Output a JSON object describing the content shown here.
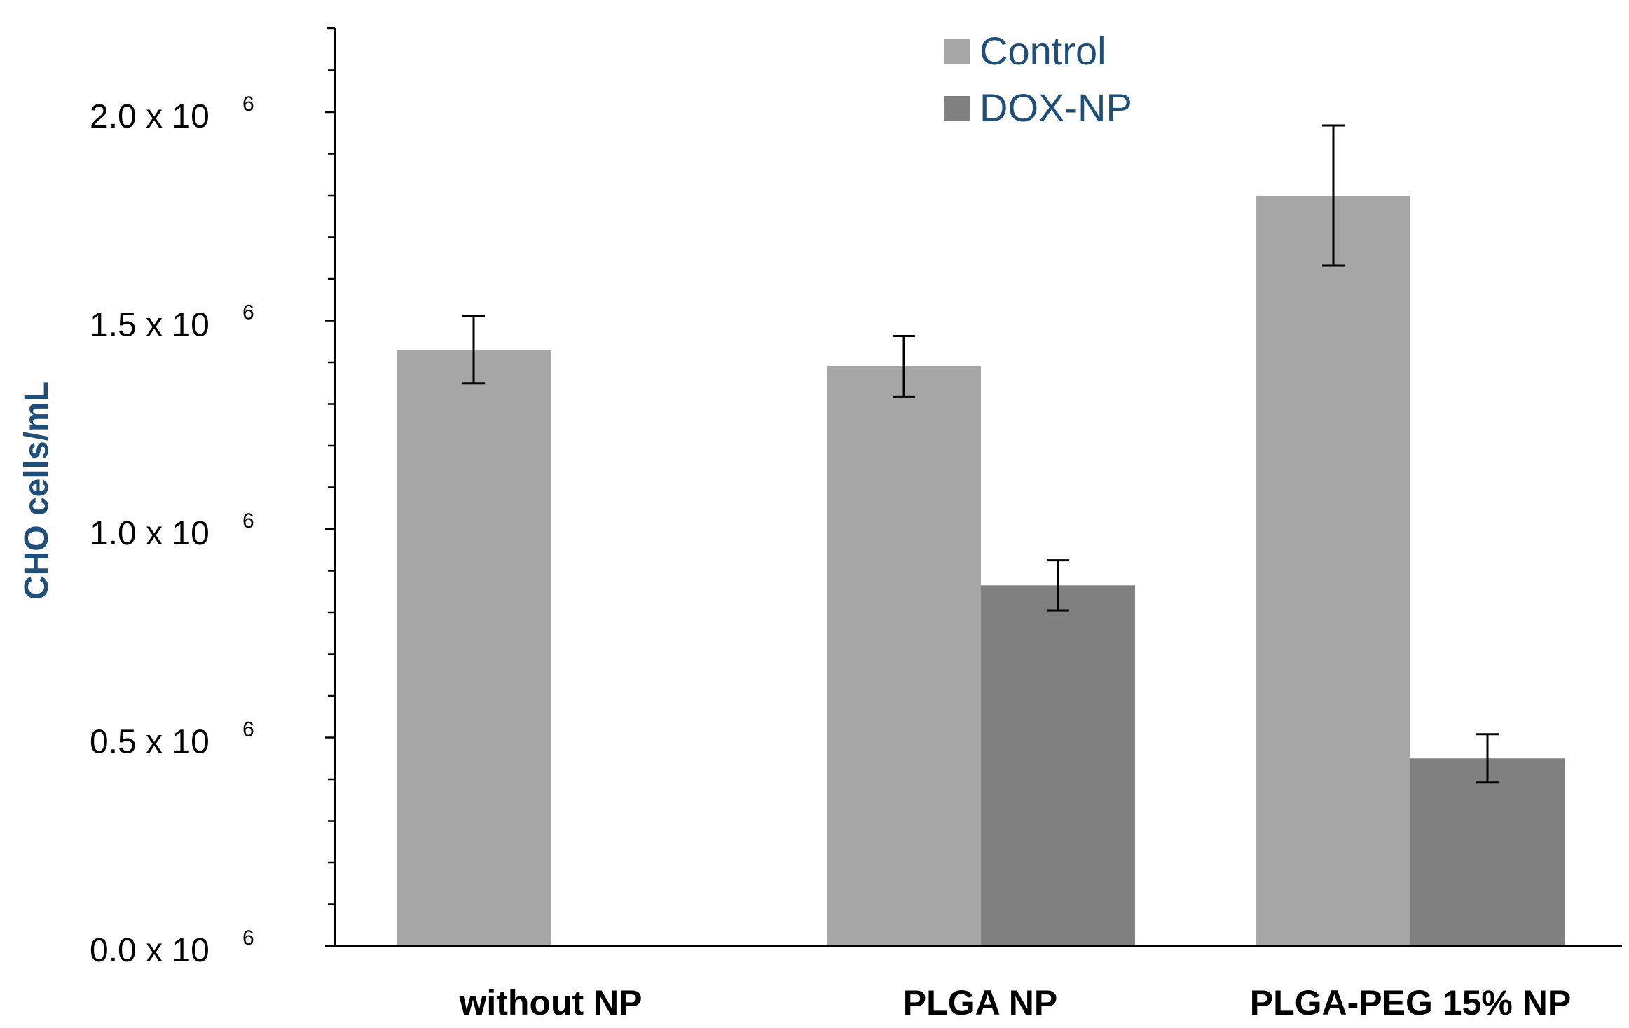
{
  "chart_data": {
    "type": "bar",
    "title": "",
    "xlabel": "",
    "ylabel": "CHO cells/mL",
    "ylim": [
      0,
      2200000
    ],
    "categories": [
      "without NP",
      "PLGA NP",
      "PLGA-PEG 15% NP"
    ],
    "y_ticks": [
      {
        "value": 0,
        "base": "0.0 x 10",
        "exp": "6"
      },
      {
        "value": 500000,
        "base": "0.5 x 10",
        "exp": "6"
      },
      {
        "value": 1000000,
        "base": "1.0 x 10",
        "exp": "6"
      },
      {
        "value": 1500000,
        "base": "1.5 x 10",
        "exp": "6"
      },
      {
        "value": 2000000,
        "base": "2.0 x 10",
        "exp": "6"
      }
    ],
    "minor_tick_step": 100000,
    "series": [
      {
        "name": "Control",
        "color": "#a6a6a6",
        "values": [
          1430000,
          1390000,
          1800000
        ],
        "errors": [
          80000,
          73000,
          168000
        ]
      },
      {
        "name": "DOX-NP",
        "color": "#808080",
        "values": [
          null,
          865000,
          450000
        ],
        "errors": [
          null,
          60000,
          58000
        ]
      }
    ],
    "legend_position": "top-center",
    "grid": false
  },
  "colors": {
    "axis": "#000000",
    "axis_title": "#1f4e79",
    "legend_text": "#1f4e79"
  }
}
